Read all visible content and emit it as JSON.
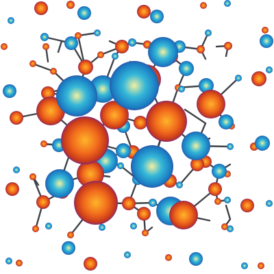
{
  "colors": {
    "background": "#ffffff",
    "bond": "#3e4146",
    "orange_core": "#ffb42a",
    "orange_mid": "#f06a1c",
    "orange_edge": "#c93a1a",
    "orange_rim": "#8a2a6a",
    "blue_core": "#f4f0a0",
    "blue_mid": "#36b8d8",
    "blue_edge": "#1a7ec4",
    "blue_rim": "#2a5aa8"
  }
}
